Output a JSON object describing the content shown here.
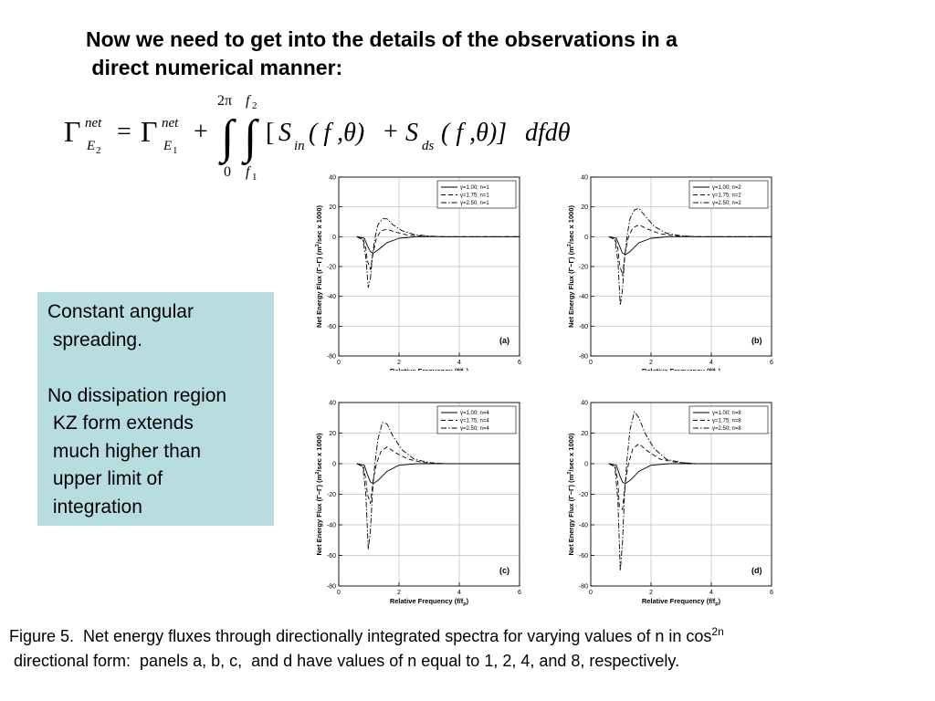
{
  "slide": {
    "title_line1": "Now we need to get into the details of the observations in a",
    "title_line2": " direct numerical manner:"
  },
  "equation": {
    "gamma": "Γ",
    "net": "net",
    "E": "E",
    "sub2": "2",
    "sub1": "1",
    "equals": "=",
    "plus": "+",
    "integral": "∫",
    "upper_outer": "2π",
    "lower_outer": "0",
    "upper_inner_f": "f",
    "upper_inner_sub": "2",
    "lower_inner_f": "f",
    "lower_inner_sub": "1",
    "lbracket": "[",
    "S": "S",
    "in": "in",
    "ds": "ds",
    "args": "( f ,θ)",
    "args2": "( f ,θ)]",
    "plus2": "+",
    "tail": "dfdθ"
  },
  "notes": {
    "lines": [
      "Constant angular",
      " spreading.",
      "",
      "No dissipation region",
      " KZ form extends",
      " much higher than",
      " upper limit of",
      " integration"
    ]
  },
  "caption": {
    "line1": "Figure 5.  Net energy fluxes through directionally integrated spectra for varying values of n in cos",
    "sup": "2n",
    "line2": " directional form:  panels a, b, c,  and d have values of n equal to 1, 2, 4, and 8, respectively."
  },
  "chart_data": [
    {
      "type": "line",
      "panel_label": "(a)",
      "xlabel": "Relative Frequency (f/f",
      "xlabel_sub": "p",
      "xlabel_end": ")",
      "ylabel": "Net Energy Flux  (Γ",
      "ylabel_b": "−Γ",
      "ylabel_c": ")  (m",
      "ylabel_sup": "2",
      "ylabel_d": "/sec  x 1000)",
      "xlim": [
        0,
        6
      ],
      "ylim": [
        -80,
        40
      ],
      "xticks": [
        "0",
        "2",
        "4",
        "6"
      ],
      "yticks": [
        "40",
        "20",
        "0",
        "-20",
        "-40",
        "-60",
        "-80"
      ],
      "grid": true,
      "legend_position": "top-right",
      "series": [
        {
          "name": "γ=1.00;  n=1",
          "style": "solid",
          "x": [
            0.6,
            0.85,
            0.95,
            1.05,
            1.15,
            1.3,
            1.6,
            2.0,
            2.6,
            3.5,
            6.0
          ],
          "y": [
            0,
            -1,
            -6,
            -10,
            -11,
            -9,
            -4,
            -1,
            0,
            0,
            0
          ]
        },
        {
          "name": "γ=1.75;  n=1",
          "style": "dashed",
          "x": [
            0.6,
            0.8,
            0.9,
            0.95,
            1.05,
            1.15,
            1.25,
            1.4,
            1.6,
            1.9,
            2.3,
            2.8,
            3.5,
            6.0
          ],
          "y": [
            0,
            -1,
            -8,
            -16,
            -22,
            -10,
            -1,
            4,
            5,
            3,
            1,
            0.3,
            0,
            0
          ]
        },
        {
          "name": "γ=2.50;  n=1",
          "style": "dashdot",
          "x": [
            0.6,
            0.8,
            0.9,
            0.98,
            1.05,
            1.12,
            1.2,
            1.3,
            1.45,
            1.6,
            1.8,
            2.1,
            2.5,
            3.0,
            3.5,
            6.0
          ],
          "y": [
            0,
            -2,
            -14,
            -34,
            -28,
            -12,
            -1,
            8,
            12,
            12,
            8,
            4,
            1.5,
            0.4,
            0,
            0
          ]
        }
      ]
    },
    {
      "type": "line",
      "panel_label": "(b)",
      "xlabel": "Relative Frequency (f/f",
      "xlabel_sub": "p",
      "xlabel_end": ")",
      "ylabel": "Net Energy Flux  (Γ",
      "ylabel_b": "−Γ",
      "ylabel_c": ")  (m",
      "ylabel_sup": "2",
      "ylabel_d": "/sec  x 1000)",
      "xlim": [
        0,
        6
      ],
      "ylim": [
        -80,
        40
      ],
      "xticks": [
        "0",
        "2",
        "4",
        "6"
      ],
      "yticks": [
        "40",
        "20",
        "0",
        "-20",
        "-40",
        "-60",
        "-80"
      ],
      "grid": true,
      "legend_position": "top-right",
      "series": [
        {
          "name": "γ=1.00;  n=2",
          "style": "solid",
          "x": [
            0.6,
            0.85,
            0.95,
            1.05,
            1.15,
            1.3,
            1.6,
            2.0,
            2.6,
            3.5,
            6.0
          ],
          "y": [
            0,
            -1,
            -6,
            -11,
            -12,
            -10,
            -4,
            -1,
            0,
            0,
            0
          ]
        },
        {
          "name": "γ=1.75;  n=2",
          "style": "dashed",
          "x": [
            0.6,
            0.8,
            0.9,
            0.95,
            1.05,
            1.15,
            1.25,
            1.4,
            1.6,
            1.9,
            2.3,
            2.8,
            3.5,
            6.0
          ],
          "y": [
            0,
            -1,
            -8,
            -18,
            -26,
            -10,
            0,
            6,
            8,
            5,
            2,
            0.5,
            0,
            0
          ]
        },
        {
          "name": "γ=2.50;  n=2",
          "style": "dashdot",
          "x": [
            0.6,
            0.8,
            0.9,
            0.98,
            1.05,
            1.12,
            1.2,
            1.3,
            1.45,
            1.6,
            1.8,
            2.1,
            2.5,
            3.0,
            3.5,
            6.0
          ],
          "y": [
            0,
            -2,
            -16,
            -46,
            -36,
            -15,
            0,
            12,
            18,
            19,
            14,
            7,
            2.5,
            0.6,
            0,
            0
          ]
        }
      ]
    },
    {
      "type": "line",
      "panel_label": "(c)",
      "xlabel": "Relative Frequency (f/f",
      "xlabel_sub": "p",
      "xlabel_end": ")",
      "ylabel": "Net Energy Flux  (Γ",
      "ylabel_b": "−Γ",
      "ylabel_c": ")  (m",
      "ylabel_sup": "2",
      "ylabel_d": "/sec  x 1000)",
      "xlim": [
        0,
        6
      ],
      "ylim": [
        -80,
        40
      ],
      "xticks": [
        "0",
        "2",
        "4",
        "6"
      ],
      "yticks": [
        "40",
        "20",
        "0",
        "-20",
        "-40",
        "-60",
        "-80"
      ],
      "grid": true,
      "legend_position": "top-right",
      "series": [
        {
          "name": "γ=1.00;  n=4",
          "style": "solid",
          "x": [
            0.6,
            0.85,
            0.95,
            1.05,
            1.15,
            1.3,
            1.6,
            2.0,
            2.6,
            3.5,
            6.0
          ],
          "y": [
            0,
            -1,
            -7,
            -12,
            -13,
            -11,
            -5,
            -1,
            0,
            0,
            0
          ]
        },
        {
          "name": "γ=1.75;  n=4",
          "style": "dashed",
          "x": [
            0.6,
            0.8,
            0.9,
            0.95,
            1.05,
            1.15,
            1.25,
            1.4,
            1.6,
            1.9,
            2.3,
            2.8,
            3.5,
            6.0
          ],
          "y": [
            0,
            -1,
            -10,
            -20,
            -26,
            -10,
            0,
            8,
            11,
            7,
            3,
            0.8,
            0,
            0
          ]
        },
        {
          "name": "γ=2.50;  n=4",
          "style": "dashdot",
          "x": [
            0.6,
            0.8,
            0.9,
            0.98,
            1.05,
            1.12,
            1.2,
            1.3,
            1.45,
            1.6,
            1.8,
            2.1,
            2.5,
            3.0,
            3.5,
            6.0
          ],
          "y": [
            0,
            -2,
            -20,
            -56,
            -44,
            -18,
            0,
            16,
            27,
            26,
            18,
            9,
            3,
            0.7,
            0,
            0
          ]
        }
      ]
    },
    {
      "type": "line",
      "panel_label": "(d)",
      "xlabel": "Relative Frequency (f/f",
      "xlabel_sub": "p",
      "xlabel_end": ")",
      "ylabel": "Net Energy Flux  (Γ",
      "ylabel_b": "−Γ",
      "ylabel_c": ")  (m",
      "ylabel_sup": "2",
      "ylabel_d": "/sec  x 1000)",
      "xlim": [
        0,
        6
      ],
      "ylim": [
        -80,
        40
      ],
      "xticks": [
        "0",
        "2",
        "4",
        "6"
      ],
      "yticks": [
        "40",
        "20",
        "0",
        "-20",
        "-40",
        "-60",
        "-80"
      ],
      "grid": true,
      "legend_position": "top-right",
      "series": [
        {
          "name": "γ=1.00;  n=8",
          "style": "solid",
          "x": [
            0.6,
            0.85,
            0.95,
            1.05,
            1.15,
            1.3,
            1.6,
            2.0,
            2.6,
            3.5,
            6.0
          ],
          "y": [
            0,
            -1,
            -7,
            -12,
            -13,
            -11,
            -5,
            -1,
            0,
            0,
            0
          ]
        },
        {
          "name": "γ=1.75;  n=8",
          "style": "dashed",
          "x": [
            0.6,
            0.8,
            0.9,
            0.95,
            1.05,
            1.15,
            1.25,
            1.4,
            1.6,
            1.9,
            2.3,
            2.8,
            3.5,
            6.0
          ],
          "y": [
            0,
            -1,
            -12,
            -28,
            -30,
            -12,
            0,
            10,
            13,
            8,
            3,
            1,
            0,
            0
          ]
        },
        {
          "name": "γ=2.50;  n=8",
          "style": "dashdot",
          "x": [
            0.6,
            0.8,
            0.9,
            0.98,
            1.05,
            1.12,
            1.2,
            1.3,
            1.45,
            1.6,
            1.8,
            2.1,
            2.5,
            3.0,
            3.5,
            6.0
          ],
          "y": [
            0,
            -2,
            -24,
            -70,
            -52,
            -20,
            2,
            22,
            34,
            30,
            20,
            10,
            3,
            0.7,
            0,
            0
          ]
        }
      ]
    }
  ]
}
